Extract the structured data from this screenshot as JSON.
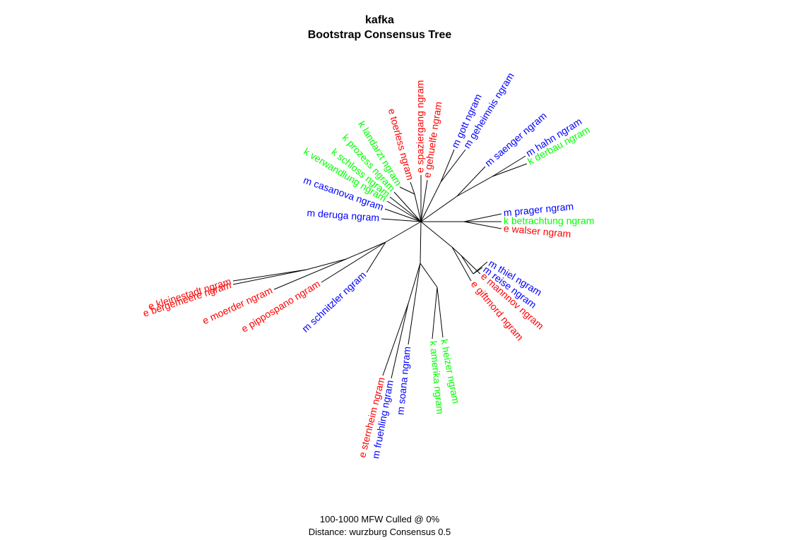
{
  "title": {
    "line1": "kafka",
    "line2": "Bootstrap Consensus Tree"
  },
  "footer": {
    "line1": "100-1000 MFW  Culled @ 0%",
    "line2": "Distance: wurzburg Consensus 0.5"
  },
  "colors": {
    "e": "#ff0000",
    "k": "#00ff00",
    "m": "#0000ff",
    "edge": "#000000"
  },
  "leaves": [
    {
      "id": "e-bergemeere",
      "label": "e bergemeere ngram",
      "group": "e"
    },
    {
      "id": "e-kleinestadt",
      "label": "e kleinestadt ngram",
      "group": "e"
    },
    {
      "id": "e-moerder",
      "label": "e moerder ngram",
      "group": "e"
    },
    {
      "id": "e-pippospano",
      "label": "e pippospano ngram",
      "group": "e"
    },
    {
      "id": "m-schnitzler",
      "label": "m schnitzler ngram",
      "group": "m"
    },
    {
      "id": "e-sternheim",
      "label": "e sternheim ngram",
      "group": "e"
    },
    {
      "id": "m-fruehling",
      "label": "m fruehling ngram",
      "group": "m"
    },
    {
      "id": "m-soana",
      "label": "m soana ngram",
      "group": "m"
    },
    {
      "id": "k-amerika",
      "label": "k amerika ngram",
      "group": "k"
    },
    {
      "id": "k-heizer",
      "label": "k heizer ngram",
      "group": "k"
    },
    {
      "id": "e-giftmord",
      "label": "e giftmord ngram",
      "group": "e"
    },
    {
      "id": "e-mannnov",
      "label": "e mannnov ngram",
      "group": "e"
    },
    {
      "id": "m-reise",
      "label": "m reise ngram",
      "group": "m"
    },
    {
      "id": "m-thiel",
      "label": "m thiel ngram",
      "group": "m"
    },
    {
      "id": "e-walser",
      "label": "e walser ngram",
      "group": "e"
    },
    {
      "id": "k-betrachtung",
      "label": "k betrachtung ngram",
      "group": "k"
    },
    {
      "id": "m-prager",
      "label": "m prager ngram",
      "group": "m"
    },
    {
      "id": "k-derbau",
      "label": "k derbau ngram",
      "group": "k"
    },
    {
      "id": "m-hahn",
      "label": "m hahn ngram",
      "group": "m"
    },
    {
      "id": "m-saenger",
      "label": "m saenger ngram",
      "group": "m"
    },
    {
      "id": "m-geheimnis",
      "label": "m geheimnis ngram",
      "group": "m"
    },
    {
      "id": "m-gott",
      "label": "m gott ngram",
      "group": "m"
    },
    {
      "id": "e-gehuelfe",
      "label": "e gehuelfe ngram",
      "group": "e"
    },
    {
      "id": "e-spaziergang",
      "label": "e spaziergang ngram",
      "group": "e"
    },
    {
      "id": "e-toerless",
      "label": "e toerless ngram",
      "group": "e"
    },
    {
      "id": "k-landarzt",
      "label": "k landarzt ngram",
      "group": "k"
    },
    {
      "id": "k-prozess",
      "label": "k prozess ngram",
      "group": "k"
    },
    {
      "id": "k-schloss",
      "label": "k schloss ngram",
      "group": "k"
    },
    {
      "id": "k-verwandlung",
      "label": "k verwandlung ngram",
      "group": "k"
    },
    {
      "id": "m-casanova",
      "label": "m casanova ngram",
      "group": "m"
    },
    {
      "id": "m-deruga",
      "label": "m deruga ngram",
      "group": "m"
    }
  ]
}
